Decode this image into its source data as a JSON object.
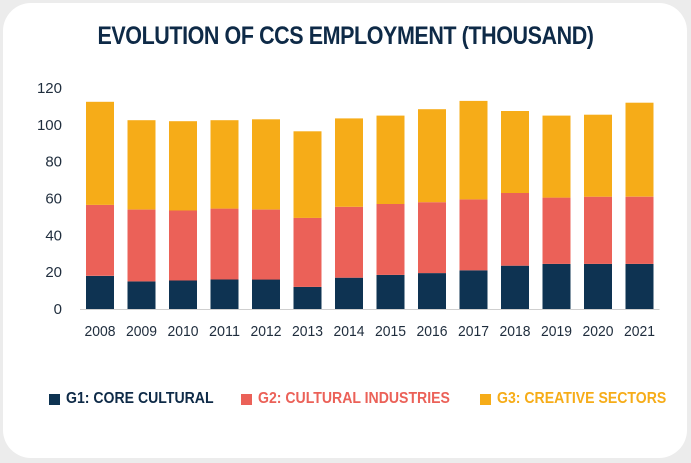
{
  "chart_data": {
    "type": "bar",
    "stacked": true,
    "title": "EVOLUTION OF CCS EMPLOYMENT (THOUSAND)",
    "xlabel": "",
    "ylabel": "",
    "ylim": [
      0,
      120
    ],
    "yticks": [
      "0",
      "20",
      "40",
      "60",
      "80",
      "100",
      "120"
    ],
    "grid": false,
    "legend_position": "bottom",
    "categories": [
      "2008",
      "2009",
      "2010",
      "2011",
      "2012",
      "2013",
      "2014",
      "2015",
      "2016",
      "2017",
      "2018",
      "2019",
      "2020",
      "2021"
    ],
    "series": [
      {
        "name": "G1: CORE CULTURAL",
        "color": "#0e3352",
        "values": [
          18,
          15,
          15.5,
          16,
          16,
          12,
          17,
          18.5,
          19.5,
          21,
          23.5,
          24.5,
          24.5,
          24.5
        ]
      },
      {
        "name": "G2: CULTURAL INDUSTRIES",
        "color": "#eb6158",
        "values": [
          38.5,
          39,
          38,
          38.5,
          38,
          37.5,
          38.5,
          38.5,
          38.5,
          38.5,
          39.5,
          36,
          36.5,
          36.5
        ]
      },
      {
        "name": "G3: CREATIVE SECTORS",
        "color": "#f6ac18",
        "values": [
          56,
          48.5,
          48.5,
          48,
          49,
          47,
          48,
          48,
          50.5,
          53.5,
          44.5,
          44.5,
          44.5,
          51
        ]
      }
    ]
  }
}
